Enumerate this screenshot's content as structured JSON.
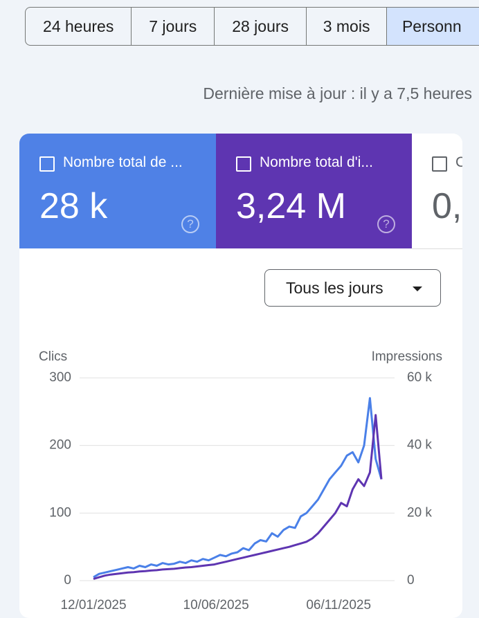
{
  "tabs": [
    "24 heures",
    "7 jours",
    "28 jours",
    "3 mois",
    "Personn"
  ],
  "last_update": "Dernière mise à jour : il y a 7,5 heures",
  "metrics": [
    {
      "label": "Nombre total de ...",
      "value": "28 k"
    },
    {
      "label": "Nombre total d'i...",
      "value": "3,24 M"
    },
    {
      "label": "C",
      "value": "0,"
    }
  ],
  "dropdown": "Tous les jours",
  "chart_data": {
    "type": "line",
    "y_label": "Clics",
    "y2_label": "Impressions",
    "x": [
      "12/01/2025",
      "19/01/2025",
      "26/01/2025",
      "02/02/2025",
      "09/02/2025",
      "16/02/2025",
      "23/02/2025",
      "02/03/2025",
      "09/03/2025",
      "16/03/2025",
      "23/03/2025",
      "30/03/2025",
      "06/04/2025",
      "13/04/2025",
      "20/04/2025",
      "27/04/2025",
      "04/05/2025",
      "11/05/2025",
      "18/05/2025",
      "25/05/2025",
      "01/06/2025",
      "08/06/2025",
      "15/06/2025",
      "22/06/2025",
      "29/06/2025",
      "06/07/2025",
      "13/07/2025",
      "20/07/2025",
      "27/07/2025",
      "03/08/2025",
      "10/08/2025",
      "17/08/2025",
      "24/08/2025",
      "31/08/2025",
      "07/09/2025",
      "14/09/2025",
      "21/09/2025",
      "28/09/2025",
      "05/10/2025",
      "12/10/2025",
      "19/10/2025",
      "26/10/2025",
      "02/11/2025",
      "09/11/2025",
      "16/11/2025",
      "23/11/2025",
      "30/11/2025",
      "07/12/2025",
      "14/12/2025",
      "21/12/2025",
      "28/12/2025"
    ],
    "series": [
      {
        "name": "Clics",
        "color": "#4a80e8",
        "values": [
          5,
          10,
          12,
          14,
          16,
          18,
          20,
          18,
          22,
          20,
          24,
          22,
          26,
          24,
          25,
          28,
          26,
          30,
          28,
          32,
          30,
          34,
          38,
          36,
          40,
          42,
          48,
          45,
          55,
          60,
          58,
          70,
          65,
          75,
          80,
          78,
          95,
          100,
          110,
          120,
          135,
          150,
          160,
          170,
          185,
          190,
          175,
          200,
          270,
          180,
          150
        ]
      },
      {
        "name": "Impressions",
        "color": "#5e35b1",
        "axis": "y2",
        "values": [
          500,
          1000,
          1500,
          1800,
          2000,
          2200,
          2400,
          2500,
          2700,
          2800,
          3000,
          3100,
          3300,
          3400,
          3500,
          3700,
          3900,
          4000,
          4200,
          4400,
          4600,
          4800,
          5200,
          5600,
          6000,
          6400,
          6800,
          7200,
          7600,
          8000,
          8400,
          8800,
          9200,
          9600,
          10000,
          10500,
          11000,
          11500,
          12500,
          14000,
          16000,
          18000,
          20000,
          23000,
          22000,
          27000,
          30000,
          28000,
          32000,
          49000,
          30000
        ]
      }
    ],
    "ylim": [
      0,
      300
    ],
    "yticks": [
      0,
      100,
      200,
      300
    ],
    "y2lim": [
      0,
      60000
    ],
    "y2ticks": [
      0,
      {
        "value": 20000,
        "label": "20 k"
      },
      {
        "value": 40000,
        "label": "40 k"
      },
      {
        "value": 60000,
        "label": "60 k"
      }
    ],
    "xticks": [
      "12/01/2025",
      "10/06/2025",
      "06/11/2025"
    ],
    "grid": true
  }
}
